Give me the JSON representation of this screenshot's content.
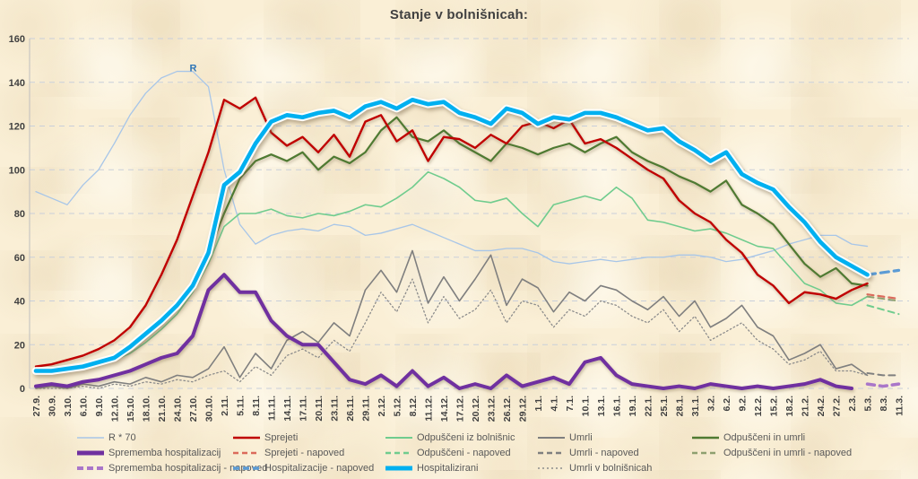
{
  "title": "Stanje v bolnišnicah:",
  "chart_data": {
    "type": "line",
    "title": "Stanje v bolnišnicah:",
    "ylim": [
      0,
      160
    ],
    "ytick_step": 20,
    "grid": true,
    "legend_position": "bottom",
    "annotation": {
      "label": "R",
      "x_index": 9.8,
      "y_value": 145,
      "color": "#2E75B6"
    },
    "categories": [
      "27.9.",
      "30.9.",
      "3.10.",
      "6.10.",
      "9.10.",
      "12.10.",
      "15.10.",
      "18.10.",
      "21.10.",
      "24.10.",
      "27.10.",
      "30.10.",
      "2.11.",
      "5.11.",
      "8.11.",
      "11.11.",
      "14.11.",
      "17.11.",
      "20.11.",
      "23.11.",
      "26.11.",
      "29.11.",
      "2.12.",
      "5.12.",
      "8.12.",
      "11.12.",
      "14.12.",
      "17.12.",
      "20.12.",
      "23.12.",
      "26.12.",
      "29.12.",
      "1.1.",
      "4.1.",
      "7.1.",
      "10.1.",
      "13.1.",
      "16.1.",
      "19.1.",
      "22.1.",
      "25.1.",
      "28.1.",
      "31.1.",
      "3.2.",
      "6.2.",
      "9.2.",
      "12.2.",
      "15.2.",
      "18.2.",
      "21.2.",
      "24.2.",
      "27.2.",
      "2.3.",
      "5.3.",
      "8.3.",
      "11.3."
    ],
    "series": [
      {
        "name": "R * 70",
        "color": "#A8C6E8",
        "width": 1.3,
        "start": 0,
        "values": [
          90,
          87,
          84,
          93,
          100,
          112,
          125,
          135,
          142,
          145,
          145,
          138,
          100,
          75,
          66,
          70,
          72,
          73,
          72,
          75,
          74,
          70,
          71,
          73,
          75,
          72,
          69,
          66,
          63,
          63,
          64,
          64,
          62,
          58,
          57,
          58,
          59,
          58,
          59,
          60,
          60,
          61,
          61,
          60,
          58,
          59,
          61,
          63,
          66,
          68,
          70,
          70,
          66,
          65
        ]
      },
      {
        "name": "Umrli v bolnišnicah",
        "color": "#8C8C8C",
        "width": 1.3,
        "dash": "1.5 2.8",
        "start": 0,
        "values": [
          0,
          0,
          0,
          1,
          0,
          2,
          1,
          3,
          2,
          4,
          3,
          6,
          8,
          3,
          10,
          6,
          15,
          18,
          14,
          22,
          17,
          30,
          44,
          35,
          50,
          30,
          42,
          32,
          36,
          45,
          30,
          40,
          38,
          28,
          36,
          33,
          40,
          38,
          33,
          30,
          36,
          26,
          33,
          22,
          26,
          30,
          22,
          18,
          11,
          13,
          17,
          8,
          8,
          6
        ]
      },
      {
        "name": "Umrli",
        "color": "#7F7F7F",
        "width": 1.6,
        "start": 0,
        "values": [
          0,
          1,
          0,
          2,
          1,
          3,
          2,
          5,
          3,
          6,
          5,
          9,
          19,
          5,
          16,
          9,
          22,
          26,
          21,
          30,
          24,
          45,
          54,
          44,
          63,
          39,
          51,
          40,
          50,
          61,
          38,
          50,
          46,
          35,
          44,
          40,
          47,
          45,
          40,
          36,
          42,
          33,
          40,
          28,
          32,
          38,
          28,
          24,
          13,
          16,
          20,
          9,
          11,
          6
        ]
      },
      {
        "name": "Umrli - napoved",
        "color": "#7F7F7F",
        "width": 2,
        "dash": "7 5",
        "start": 53,
        "values": [
          7,
          6,
          6
        ]
      },
      {
        "name": "Odpuščeni iz bolnišnic",
        "color": "#70CC8E",
        "width": 1.6,
        "start": 0,
        "values": [
          8,
          8,
          9,
          10,
          11,
          13,
          16,
          21,
          27,
          34,
          44,
          57,
          74,
          80,
          80,
          82,
          79,
          78,
          80,
          79,
          81,
          84,
          83,
          87,
          92,
          99,
          96,
          92,
          86,
          85,
          87,
          80,
          74,
          84,
          86,
          88,
          86,
          92,
          87,
          77,
          76,
          74,
          72,
          73,
          71,
          68,
          65,
          64,
          56,
          48,
          45,
          39,
          38,
          42
        ]
      },
      {
        "name": "Odpuščeni - napoved",
        "color": "#70CC8E",
        "width": 2,
        "dash": "7 5",
        "start": 53,
        "values": [
          38,
          36,
          34
        ]
      },
      {
        "name": "Odpuščeni in umrli - napoved",
        "color": "#8EA06F",
        "width": 2,
        "dash": "7 5",
        "start": 53,
        "values": [
          42,
          41,
          40
        ]
      },
      {
        "name": "Odpuščeni in umrli",
        "color": "#4F7A32",
        "width": 2.2,
        "shadow": true,
        "start": 0,
        "values": [
          9,
          9,
          10,
          11,
          12,
          14,
          18,
          24,
          30,
          38,
          48,
          62,
          80,
          96,
          104,
          107,
          104,
          108,
          100,
          106,
          103,
          108,
          118,
          124,
          115,
          113,
          118,
          112,
          108,
          104,
          112,
          110,
          107,
          110,
          112,
          108,
          112,
          115,
          108,
          104,
          101,
          97,
          94,
          90,
          95,
          84,
          80,
          75,
          66,
          57,
          51,
          55,
          48,
          47
        ]
      },
      {
        "name": "Sprejeti - napoved",
        "color": "#DB6A5B",
        "width": 2.2,
        "dash": "7 5",
        "start": 53,
        "values": [
          43,
          42,
          41
        ]
      },
      {
        "name": "Sprejeti",
        "color": "#C00000",
        "width": 2.4,
        "shadow": true,
        "start": 0,
        "values": [
          10,
          11,
          13,
          15,
          18,
          22,
          28,
          38,
          52,
          68,
          88,
          108,
          132,
          128,
          133,
          117,
          111,
          115,
          108,
          116,
          106,
          122,
          125,
          113,
          118,
          104,
          115,
          114,
          110,
          116,
          112,
          120,
          122,
          119,
          123,
          112,
          114,
          110,
          105,
          100,
          96,
          86,
          80,
          76,
          68,
          62,
          52,
          47,
          39,
          44,
          43,
          41,
          45,
          48
        ]
      },
      {
        "name": "Sprememba hospitalizacij - napoved",
        "color": "#A976C9",
        "width": 3.5,
        "dash": "8 6",
        "start": 53,
        "values": [
          2,
          1,
          2
        ]
      },
      {
        "name": "Sprememba hospitalizacij",
        "color": "#7030A0",
        "width": 4,
        "shadow": true,
        "start": 0,
        "values": [
          1,
          2,
          1,
          3,
          4,
          6,
          8,
          11,
          14,
          16,
          24,
          45,
          52,
          44,
          44,
          31,
          24,
          20,
          20,
          12,
          4,
          2,
          6,
          1,
          8,
          1,
          5,
          0,
          2,
          0,
          6,
          1,
          3,
          5,
          2,
          12,
          14,
          6,
          2,
          1,
          0,
          1,
          0,
          2,
          1,
          0,
          1,
          0,
          1,
          2,
          4,
          1,
          0
        ]
      },
      {
        "name": "Hospitalizacije - napoved",
        "color": "#5B9BD5",
        "width": 3.2,
        "dash": "9 6",
        "start": 53,
        "values": [
          52,
          53,
          54
        ]
      },
      {
        "name": "Hospitalizirani",
        "color": "#00B0F0",
        "width": 4.6,
        "halo": true,
        "shadow": true,
        "start": 0,
        "values": [
          8,
          8,
          9,
          10,
          12,
          14,
          19,
          25,
          31,
          38,
          47,
          62,
          93,
          99,
          112,
          122,
          125,
          124,
          126,
          127,
          124,
          129,
          131,
          128,
          132,
          130,
          131,
          126,
          124,
          121,
          128,
          126,
          121,
          124,
          123,
          126,
          126,
          124,
          121,
          118,
          119,
          113,
          109,
          104,
          108,
          98,
          94,
          91,
          83,
          76,
          67,
          60,
          56,
          52
        ]
      }
    ]
  },
  "legend": {
    "items": [
      {
        "label": "R * 70",
        "color": "#A8C6E8",
        "width": 1.5
      },
      {
        "label": "Sprejeti",
        "color": "#C00000",
        "width": 2.5
      },
      {
        "label": "Odpuščeni iz bolnišnic",
        "color": "#70CC8E",
        "width": 2
      },
      {
        "label": "Umrli",
        "color": "#7F7F7F",
        "width": 2
      },
      {
        "label": "Odpuščeni in umrli",
        "color": "#4F7A32",
        "width": 2.5
      },
      {
        "label": "Sprememba hospitalizacij",
        "color": "#7030A0",
        "width": 5
      },
      {
        "label": "Sprejeti - napoved",
        "color": "#DB6A5B",
        "width": 2.5,
        "dash": "6 4"
      },
      {
        "label": "Odpuščeni - napoved",
        "color": "#70CC8E",
        "width": 2.5,
        "dash": "6 4"
      },
      {
        "label": "Umrli - napoved",
        "color": "#7F7F7F",
        "width": 2.5,
        "dash": "6 4"
      },
      {
        "label": "Odpuščeni in umrli - napoved",
        "color": "#8EA06F",
        "width": 2.5,
        "dash": "6 4"
      },
      {
        "label": "Sprememba hospitalizacij - napoved",
        "color": "#A976C9",
        "width": 4,
        "dash": "7 4"
      },
      {
        "label": "Hospitalizacije - napoved",
        "color": "#5B9BD5",
        "width": 3.5,
        "dash": "7 4"
      },
      {
        "label": "Hospitalizirani",
        "color": "#00B0F0",
        "width": 5
      },
      {
        "label": "Umrli v bolnišnicah",
        "color": "#8C8C8C",
        "width": 1.5,
        "dash": "2 3"
      }
    ]
  }
}
